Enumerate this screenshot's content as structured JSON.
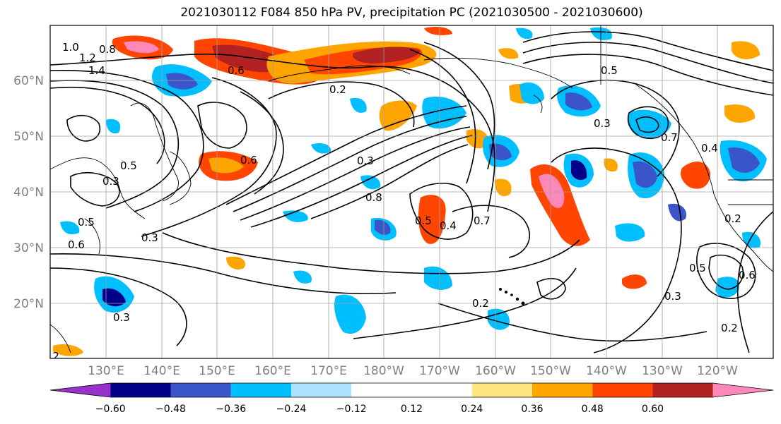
{
  "title": "2021030112 F084 850 hPa PV, precipitation PC (2021030500 - 2021030600)",
  "latitudes": [
    "60°N",
    "50°N",
    "40°N",
    "30°N",
    "20°N"
  ],
  "longitudes": [
    "130°E",
    "140°E",
    "150°E",
    "160°E",
    "170°E",
    "180°W",
    "170°W",
    "160°W",
    "150°W",
    "140°W",
    "130°W",
    "120°W"
  ],
  "colorbar": {
    "ticks": [
      "−0.60",
      "−0.48",
      "−0.36",
      "−0.24",
      "−0.12",
      "0.12",
      "0.24",
      "0.36",
      "0.48",
      "0.60"
    ],
    "colors": [
      "#9932cc",
      "#00008b",
      "#3a55c8",
      "#00bfff",
      "#aee3ff",
      "#ffffff",
      "#ffffff",
      "#ffe680",
      "#ffa500",
      "#ff4500",
      "#b22222",
      "#ff88bb"
    ]
  },
  "contour_labels": [
    "1.0",
    "1.2",
    "1.4",
    "0.8",
    "0.6",
    "0.2",
    "0.3",
    "0.4",
    "0.5",
    "0.7",
    "0.8",
    "0.3",
    "0.6",
    "0.6",
    "0.3",
    "0.5",
    "0.5",
    "0.3",
    "0.4",
    "0.2",
    "0.5",
    "0.6",
    "0.3",
    "0.2",
    "0.2",
    "0.3",
    "0.2",
    "0.5",
    "0.7"
  ]
}
